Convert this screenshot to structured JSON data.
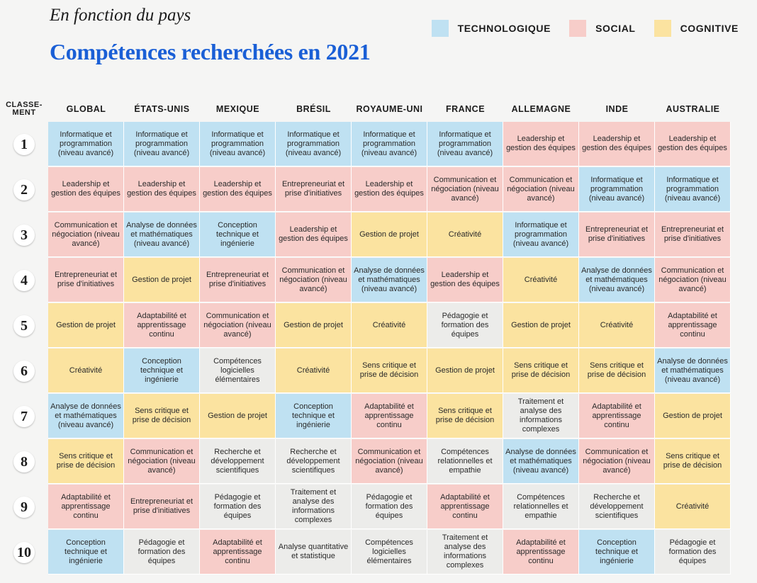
{
  "header": {
    "subtitle": "En fonction du pays",
    "title": "Compétences recherchées en 2021"
  },
  "legend": [
    {
      "label": "TECHNOLOGIQUE",
      "color": "#bfe1f2"
    },
    {
      "label": "SOCIAL",
      "color": "#f7cdc9"
    },
    {
      "label": "COGNITIVE",
      "color": "#fbe3a0"
    }
  ],
  "chart_data": {
    "type": "table",
    "rank_header": "CLASSE-\nMENT",
    "columns": [
      "GLOBAL",
      "ÉTATS-UNIS",
      "MEXIQUE",
      "BRÉSIL",
      "ROYAUME-UNI",
      "FRANCE",
      "ALLEMAGNE",
      "INDE",
      "AUSTRALIE"
    ],
    "ranks": [
      "1",
      "2",
      "3",
      "4",
      "5",
      "6",
      "7",
      "8",
      "9",
      "10"
    ],
    "rows": [
      [
        {
          "text": "Informatique et programmation (niveau avancé)",
          "cat": "tech"
        },
        {
          "text": "Informatique et programmation (niveau avancé)",
          "cat": "tech"
        },
        {
          "text": "Informatique et programmation (niveau avancé)",
          "cat": "tech"
        },
        {
          "text": "Informatique et programmation (niveau avancé)",
          "cat": "tech"
        },
        {
          "text": "Informatique et programmation (niveau avancé)",
          "cat": "tech"
        },
        {
          "text": "Informatique et programmation (niveau avancé)",
          "cat": "tech"
        },
        {
          "text": "Leadership et gestion des équipes",
          "cat": "social"
        },
        {
          "text": "Leadership et gestion des équipes",
          "cat": "social"
        },
        {
          "text": "Leadership et gestion des équipes",
          "cat": "social"
        }
      ],
      [
        {
          "text": "Leadership et gestion des équipes",
          "cat": "social"
        },
        {
          "text": "Leadership et gestion des équipes",
          "cat": "social"
        },
        {
          "text": "Leadership et gestion des équipes",
          "cat": "social"
        },
        {
          "text": "Entrepreneuriat et prise d'initiatives",
          "cat": "social"
        },
        {
          "text": "Leadership et gestion des équipes",
          "cat": "social"
        },
        {
          "text": "Communication et négociation (niveau avancé)",
          "cat": "social"
        },
        {
          "text": "Communication et négociation (niveau avancé)",
          "cat": "social"
        },
        {
          "text": "Informatique et programmation (niveau avancé)",
          "cat": "tech"
        },
        {
          "text": "Informatique et programmation (niveau avancé)",
          "cat": "tech"
        }
      ],
      [
        {
          "text": "Communication et négociation (niveau avancé)",
          "cat": "social"
        },
        {
          "text": "Analyse de données et mathématiques (niveau avancé)",
          "cat": "tech"
        },
        {
          "text": "Conception technique et ingénierie",
          "cat": "tech"
        },
        {
          "text": "Leadership et gestion des équipes",
          "cat": "social"
        },
        {
          "text": "Gestion de projet",
          "cat": "cog"
        },
        {
          "text": "Créativité",
          "cat": "cog"
        },
        {
          "text": "Informatique et programmation (niveau avancé)",
          "cat": "tech"
        },
        {
          "text": "Entrepreneuriat et prise d'initiatives",
          "cat": "social"
        },
        {
          "text": "Entrepreneuriat et prise d'initiatives",
          "cat": "social"
        }
      ],
      [
        {
          "text": "Entrepreneuriat et prise d'initiatives",
          "cat": "social"
        },
        {
          "text": "Gestion de projet",
          "cat": "cog"
        },
        {
          "text": "Entrepreneuriat et prise d'initiatives",
          "cat": "social"
        },
        {
          "text": "Communication et négociation (niveau avancé)",
          "cat": "social"
        },
        {
          "text": "Analyse de données et mathématiques (niveau avancé)",
          "cat": "tech"
        },
        {
          "text": "Leadership et gestion des équipes",
          "cat": "social"
        },
        {
          "text": "Créativité",
          "cat": "cog"
        },
        {
          "text": "Analyse de données et mathématiques (niveau avancé)",
          "cat": "tech"
        },
        {
          "text": "Communication et négociation (niveau avancé)",
          "cat": "social"
        }
      ],
      [
        {
          "text": "Gestion de projet",
          "cat": "cog"
        },
        {
          "text": "Adaptabilité et apprentissage continu",
          "cat": "social"
        },
        {
          "text": "Communication et négociation (niveau avancé)",
          "cat": "social"
        },
        {
          "text": "Gestion de projet",
          "cat": "cog"
        },
        {
          "text": "Créativité",
          "cat": "cog"
        },
        {
          "text": "Pédagogie et formation des équipes",
          "cat": "none"
        },
        {
          "text": "Gestion de projet",
          "cat": "cog"
        },
        {
          "text": "Créativité",
          "cat": "cog"
        },
        {
          "text": "Adaptabilité et apprentissage continu",
          "cat": "social"
        }
      ],
      [
        {
          "text": "Créativité",
          "cat": "cog"
        },
        {
          "text": "Conception technique et ingénierie",
          "cat": "tech"
        },
        {
          "text": "Compétences logicielles élémentaires",
          "cat": "none"
        },
        {
          "text": "Créativité",
          "cat": "cog"
        },
        {
          "text": "Sens critique et prise de décision",
          "cat": "cog"
        },
        {
          "text": "Gestion de projet",
          "cat": "cog"
        },
        {
          "text": "Sens critique et prise de décision",
          "cat": "cog"
        },
        {
          "text": "Sens critique et prise de décision",
          "cat": "cog"
        },
        {
          "text": "Analyse de données et mathématiques (niveau avancé)",
          "cat": "tech"
        }
      ],
      [
        {
          "text": "Analyse de données et mathématiques (niveau avancé)",
          "cat": "tech"
        },
        {
          "text": "Sens critique et prise de décision",
          "cat": "cog"
        },
        {
          "text": "Gestion de projet",
          "cat": "cog"
        },
        {
          "text": "Conception technique et ingénierie",
          "cat": "tech"
        },
        {
          "text": "Adaptabilité et apprentissage continu",
          "cat": "social"
        },
        {
          "text": "Sens critique et prise de décision",
          "cat": "cog"
        },
        {
          "text": "Traitement et analyse des informations complexes",
          "cat": "none"
        },
        {
          "text": "Adaptabilité et apprentissage continu",
          "cat": "social"
        },
        {
          "text": "Gestion de projet",
          "cat": "cog"
        }
      ],
      [
        {
          "text": "Sens critique et prise de décision",
          "cat": "cog"
        },
        {
          "text": "Communication et négociation (niveau avancé)",
          "cat": "social"
        },
        {
          "text": "Recherche et développement scientifiques",
          "cat": "none"
        },
        {
          "text": "Recherche et développement scientifiques",
          "cat": "none"
        },
        {
          "text": "Communication et négociation (niveau avancé)",
          "cat": "social"
        },
        {
          "text": "Compétences relationnelles et empathie",
          "cat": "none"
        },
        {
          "text": "Analyse de données et mathématiques (niveau avancé)",
          "cat": "tech"
        },
        {
          "text": "Communication et négociation (niveau avancé)",
          "cat": "social"
        },
        {
          "text": "Sens critique et prise de décision",
          "cat": "cog"
        }
      ],
      [
        {
          "text": "Adaptabilité et apprentissage continu",
          "cat": "social"
        },
        {
          "text": "Entrepreneuriat et prise d'initiatives",
          "cat": "social"
        },
        {
          "text": "Pédagogie et formation des équipes",
          "cat": "none"
        },
        {
          "text": "Traitement et analyse des informations complexes",
          "cat": "none"
        },
        {
          "text": "Pédagogie et formation des équipes",
          "cat": "none"
        },
        {
          "text": "Adaptabilité et apprentissage continu",
          "cat": "social"
        },
        {
          "text": "Compétences relationnelles et empathie",
          "cat": "none"
        },
        {
          "text": "Recherche et développement scientifiques",
          "cat": "none"
        },
        {
          "text": "Créativité",
          "cat": "cog"
        }
      ],
      [
        {
          "text": "Conception technique et ingénierie",
          "cat": "tech"
        },
        {
          "text": "Pédagogie et formation des équipes",
          "cat": "none"
        },
        {
          "text": "Adaptabilité et apprentissage continu",
          "cat": "social"
        },
        {
          "text": "Analyse quantitative et statistique",
          "cat": "none"
        },
        {
          "text": "Compétences logicielles élémentaires",
          "cat": "none"
        },
        {
          "text": "Traitement et analyse des informations complexes",
          "cat": "none"
        },
        {
          "text": "Adaptabilité et apprentissage continu",
          "cat": "social"
        },
        {
          "text": "Conception technique et ingénierie",
          "cat": "tech"
        },
        {
          "text": "Pédagogie et formation des équipes",
          "cat": "none"
        }
      ]
    ]
  }
}
